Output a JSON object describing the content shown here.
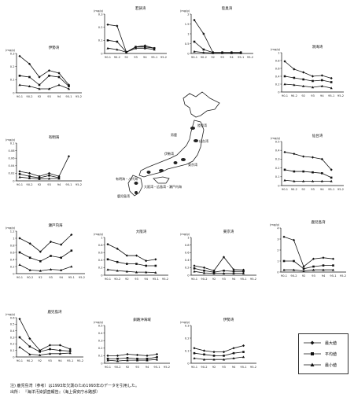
{
  "legend": [
    {
      "label": "最大値",
      "marker": "diamond"
    },
    {
      "label": "平均値",
      "marker": "square"
    },
    {
      "label": "最小値",
      "marker": "triangle"
    }
  ],
  "notes": [
    "注)  鹿児島湾（参考）は1993年欠測のため1993年のデータを引用した。",
    "出所： 『海洋汚染調査報告』（海上保安庁水路部）"
  ],
  "map_labels": [
    "陸奥湾",
    "男鹿",
    "仙台湾",
    "伊勢湾",
    "東京湾",
    "大阪湾・広島湾・瀬戸内海",
    "有明海・八代海",
    "鹿児島湾"
  ],
  "chart_data": [
    {
      "id": "p1",
      "type": "line",
      "title": "若狭湾",
      "unit": "(mg/g)",
      "categories": [
        "90-1",
        "90-2",
        "92",
        "93",
        "94",
        "95-1",
        "95-2"
      ],
      "ylim": [
        0,
        0.3
      ],
      "yticks": [
        "0",
        "0.1",
        "0.2",
        "0.3"
      ],
      "series": [
        {
          "name": "最大値",
          "values": [
            0.22,
            0.21,
            0.01,
            0.05,
            0.06,
            0.04,
            null
          ]
        },
        {
          "name": "平均値",
          "values": [
            0.1,
            0.09,
            0.01,
            0.05,
            0.05,
            0.04,
            null
          ]
        },
        {
          "name": "最小値",
          "values": [
            0.04,
            0.03,
            0.01,
            0.04,
            0.04,
            0.03,
            null
          ]
        }
      ]
    },
    {
      "id": "p2",
      "type": "line",
      "title": "陸奥湾",
      "unit": "(mg/g)",
      "categories": [
        "90-1",
        "90-2",
        "92",
        "93",
        "94",
        "95-1",
        "95-2"
      ],
      "ylim": [
        0,
        2
      ],
      "yticks": [
        "0",
        "0.5",
        "1",
        "1.5",
        "2"
      ],
      "series": [
        {
          "name": "最大値",
          "values": [
            1.7,
            1.0,
            0.05,
            0.05,
            0.05,
            0.05,
            null
          ]
        },
        {
          "name": "平均値",
          "values": [
            0.6,
            0.2,
            0.05,
            0.05,
            0.05,
            0.05,
            null
          ]
        },
        {
          "name": "最小値",
          "values": [
            0.1,
            0.05,
            0.02,
            0.02,
            0.02,
            0.02,
            null
          ]
        }
      ]
    },
    {
      "id": "p3",
      "type": "line",
      "title": "洞海湾",
      "unit": "(mg/g)",
      "categories": [
        "90-1",
        "90-2",
        "92",
        "93",
        "94",
        "95-1",
        "95-2"
      ],
      "ylim": [
        0,
        1
      ],
      "yticks": [
        "0",
        "0.2",
        "0.4",
        "0.6",
        "0.8",
        "1"
      ],
      "series": [
        {
          "name": "最大値",
          "values": [
            0.78,
            0.58,
            0.5,
            0.4,
            0.42,
            0.35,
            null
          ]
        },
        {
          "name": "平均値",
          "values": [
            0.4,
            0.36,
            0.32,
            0.28,
            0.3,
            0.25,
            null
          ]
        },
        {
          "name": "最小値",
          "values": [
            0.2,
            0.18,
            0.15,
            0.12,
            0.15,
            0.1,
            null
          ]
        }
      ]
    },
    {
      "id": "p4",
      "type": "line",
      "title": "伊勢湾",
      "unit": "(mg/g)",
      "categories": [
        "90-1",
        "90-2",
        "92",
        "93",
        "94",
        "95-1",
        "95-2"
      ],
      "ylim": [
        0,
        0.3
      ],
      "yticks": [
        "0",
        "0.1",
        "0.2",
        "0.3"
      ],
      "series": [
        {
          "name": "最大値",
          "values": [
            0.28,
            0.22,
            0.12,
            0.17,
            0.15,
            0.06,
            null
          ]
        },
        {
          "name": "平均値",
          "values": [
            0.13,
            0.12,
            0.06,
            0.13,
            0.12,
            0.05,
            null
          ]
        },
        {
          "name": "最小値",
          "values": [
            0.06,
            0.05,
            0.03,
            0.03,
            0.06,
            0.03,
            null
          ]
        }
      ]
    },
    {
      "id": "p5",
      "type": "line",
      "title": "有明海",
      "unit": "(mg/g)",
      "categories": [
        "90-1",
        "90-2",
        "92",
        "93",
        "94",
        "95-1",
        "95-2"
      ],
      "ylim": [
        0,
        0.1
      ],
      "yticks": [
        "0",
        "0.02",
        "0.04",
        "0.06",
        "0.08",
        "0.1"
      ],
      "series": [
        {
          "name": "最大値",
          "values": [
            0.025,
            0.02,
            0.012,
            0.02,
            0.012,
            0.065,
            null
          ]
        },
        {
          "name": "平均値",
          "values": [
            0.018,
            0.012,
            0.008,
            0.014,
            0.008,
            null,
            null
          ]
        },
        {
          "name": "最小値",
          "values": [
            0.01,
            0.007,
            0.005,
            0.006,
            0.006,
            null,
            null
          ]
        }
      ]
    },
    {
      "id": "p6",
      "type": "line",
      "title": "仙台湾",
      "unit": "(mg/g)",
      "categories": [
        "90-1",
        "90-2",
        "92",
        "93",
        "94",
        "95-1",
        "95-2"
      ],
      "ylim": [
        0,
        0.5
      ],
      "yticks": [
        "0",
        "0.1",
        "0.2",
        "0.3",
        "0.4",
        "0.5"
      ],
      "series": [
        {
          "name": "最大値",
          "values": [
            0.38,
            0.36,
            0.33,
            0.32,
            0.3,
            0.18,
            null
          ]
        },
        {
          "name": "平均値",
          "values": [
            0.18,
            0.16,
            0.16,
            0.15,
            0.14,
            0.09,
            null
          ]
        },
        {
          "name": "最小値",
          "values": [
            0.06,
            0.05,
            0.05,
            0.05,
            0.05,
            0.05,
            null
          ]
        }
      ]
    },
    {
      "id": "p7",
      "type": "line",
      "title": "瀬戸内海",
      "unit": "(mg/g)",
      "categories": [
        "90-1",
        "90-2",
        "92",
        "93",
        "94",
        "95-1",
        "95-2"
      ],
      "ylim": [
        0,
        1.2
      ],
      "yticks": [
        "0",
        "0.2",
        "0.4",
        "0.6",
        "0.8",
        "1",
        "1.2"
      ],
      "series": [
        {
          "name": "最大値",
          "values": [
            1.0,
            0.85,
            0.62,
            0.9,
            0.82,
            1.1,
            null
          ]
        },
        {
          "name": "平均値",
          "values": [
            0.6,
            0.45,
            0.35,
            0.5,
            0.45,
            0.65,
            null
          ]
        },
        {
          "name": "最小値",
          "values": [
            0.25,
            0.1,
            0.08,
            0.12,
            0.1,
            0.2,
            null
          ]
        }
      ]
    },
    {
      "id": "p8",
      "type": "line",
      "title": "大阪湾",
      "unit": "(mg/g)",
      "categories": [
        "90-1",
        "90-2",
        "92",
        "93",
        "94",
        "95-1",
        "95-2"
      ],
      "ylim": [
        0,
        1
      ],
      "yticks": [
        "0",
        "0.2",
        "0.4",
        "0.6",
        "0.8",
        "1"
      ],
      "series": [
        {
          "name": "最大値",
          "values": [
            0.82,
            0.7,
            0.52,
            0.52,
            0.38,
            0.42,
            null
          ]
        },
        {
          "name": "平均値",
          "values": [
            0.42,
            0.35,
            0.3,
            0.3,
            0.25,
            0.25,
            null
          ]
        },
        {
          "name": "最小値",
          "values": [
            0.15,
            0.12,
            0.1,
            0.08,
            0.08,
            0.07,
            null
          ]
        }
      ]
    },
    {
      "id": "p9",
      "type": "line",
      "title": "東京湾",
      "unit": "(mg/g)",
      "categories": [
        "90-1",
        "90-2",
        "92",
        "93",
        "94",
        "95-1",
        "95-2"
      ],
      "ylim": [
        0,
        1
      ],
      "yticks": [
        "0",
        "0.2",
        "0.4",
        "0.6",
        "0.8",
        "1"
      ],
      "series": [
        {
          "name": "最大値",
          "values": [
            0.25,
            0.2,
            0.12,
            0.48,
            0.15,
            0.14,
            null
          ]
        },
        {
          "name": "平均値",
          "values": [
            0.18,
            0.12,
            0.08,
            0.12,
            0.1,
            0.1,
            null
          ]
        },
        {
          "name": "最小値",
          "values": [
            0.1,
            0.06,
            0.05,
            0.05,
            0.05,
            0.05,
            null
          ]
        }
      ]
    },
    {
      "id": "p10",
      "type": "line",
      "title": "鹿児島湾",
      "unit": "(mg/g)",
      "categories": [
        "90-1",
        "90-2",
        "92",
        "93",
        "94",
        "95-1",
        "95-2"
      ],
      "ylim": [
        0,
        4
      ],
      "yticks": [
        "0",
        "1",
        "2",
        "3",
        "4"
      ],
      "series": [
        {
          "name": "最大値",
          "values": [
            3.2,
            2.9,
            0.5,
            1.2,
            1.3,
            1.2,
            null
          ]
        },
        {
          "name": "平均値",
          "values": [
            1.0,
            1.0,
            0.3,
            0.5,
            0.6,
            0.6,
            null
          ]
        },
        {
          "name": "最小値",
          "values": [
            0.2,
            0.2,
            0.1,
            0.2,
            0.2,
            0.2,
            null
          ]
        }
      ]
    },
    {
      "id": "p11",
      "type": "line",
      "title": "鹿児島湾",
      "unit": "(mg/g)",
      "categories": [
        "90-1",
        "90-2",
        "92",
        "93",
        "94",
        "95-1",
        "95-2"
      ],
      "ylim": [
        0,
        0.6
      ],
      "yticks": [
        "0",
        "0.1",
        "0.2",
        "0.3",
        "0.4",
        "0.5",
        "0.6"
      ],
      "series": [
        {
          "name": "最大値",
          "values": [
            0.58,
            0.28,
            0.1,
            0.18,
            0.18,
            0.12,
            null
          ]
        },
        {
          "name": "平均値",
          "values": [
            0.3,
            0.16,
            0.08,
            0.12,
            0.1,
            0.09,
            null
          ]
        },
        {
          "name": "最小値",
          "values": [
            0.15,
            0.04,
            0.03,
            0.05,
            0.05,
            0.06,
            null
          ]
        }
      ]
    },
    {
      "id": "p12",
      "type": "line",
      "title": "釧路沖海域",
      "unit": "(mg/g)",
      "categories": [
        "90-1",
        "90-2",
        "92",
        "93",
        "94",
        "95-1",
        "95-2"
      ],
      "ylim": [
        0,
        0.5
      ],
      "yticks": [
        "0",
        "0.1",
        "0.2",
        "0.3",
        "0.4",
        "0.5"
      ],
      "series": [
        {
          "name": "最大値",
          "values": [
            0.1,
            0.1,
            0.12,
            0.11,
            0.1,
            0.12,
            null
          ]
        },
        {
          "name": "平均値",
          "values": [
            0.06,
            0.06,
            0.07,
            0.06,
            0.06,
            0.08,
            null
          ]
        },
        {
          "name": "最小値",
          "values": [
            0.04,
            0.03,
            0.04,
            0.04,
            0.04,
            0.05,
            null
          ]
        }
      ]
    },
    {
      "id": "p13",
      "type": "line",
      "title": "伊勢湾",
      "unit": "(mg/g)",
      "categories": [
        "90-1",
        "90-2",
        "92",
        "93",
        "94",
        "95-1",
        "95-2"
      ],
      "ylim": [
        0,
        0.3
      ],
      "yticks": [
        "0",
        "0.1",
        "0.2",
        "0.3"
      ],
      "series": [
        {
          "name": "最大値",
          "values": [
            0.12,
            0.1,
            0.09,
            0.09,
            0.12,
            0.14,
            null
          ]
        },
        {
          "name": "平均値",
          "values": [
            0.08,
            0.07,
            0.06,
            0.06,
            0.08,
            0.09,
            null
          ]
        },
        {
          "name": "最小値",
          "values": [
            0.04,
            0.03,
            0.03,
            0.03,
            0.04,
            0.05,
            null
          ]
        }
      ]
    }
  ]
}
